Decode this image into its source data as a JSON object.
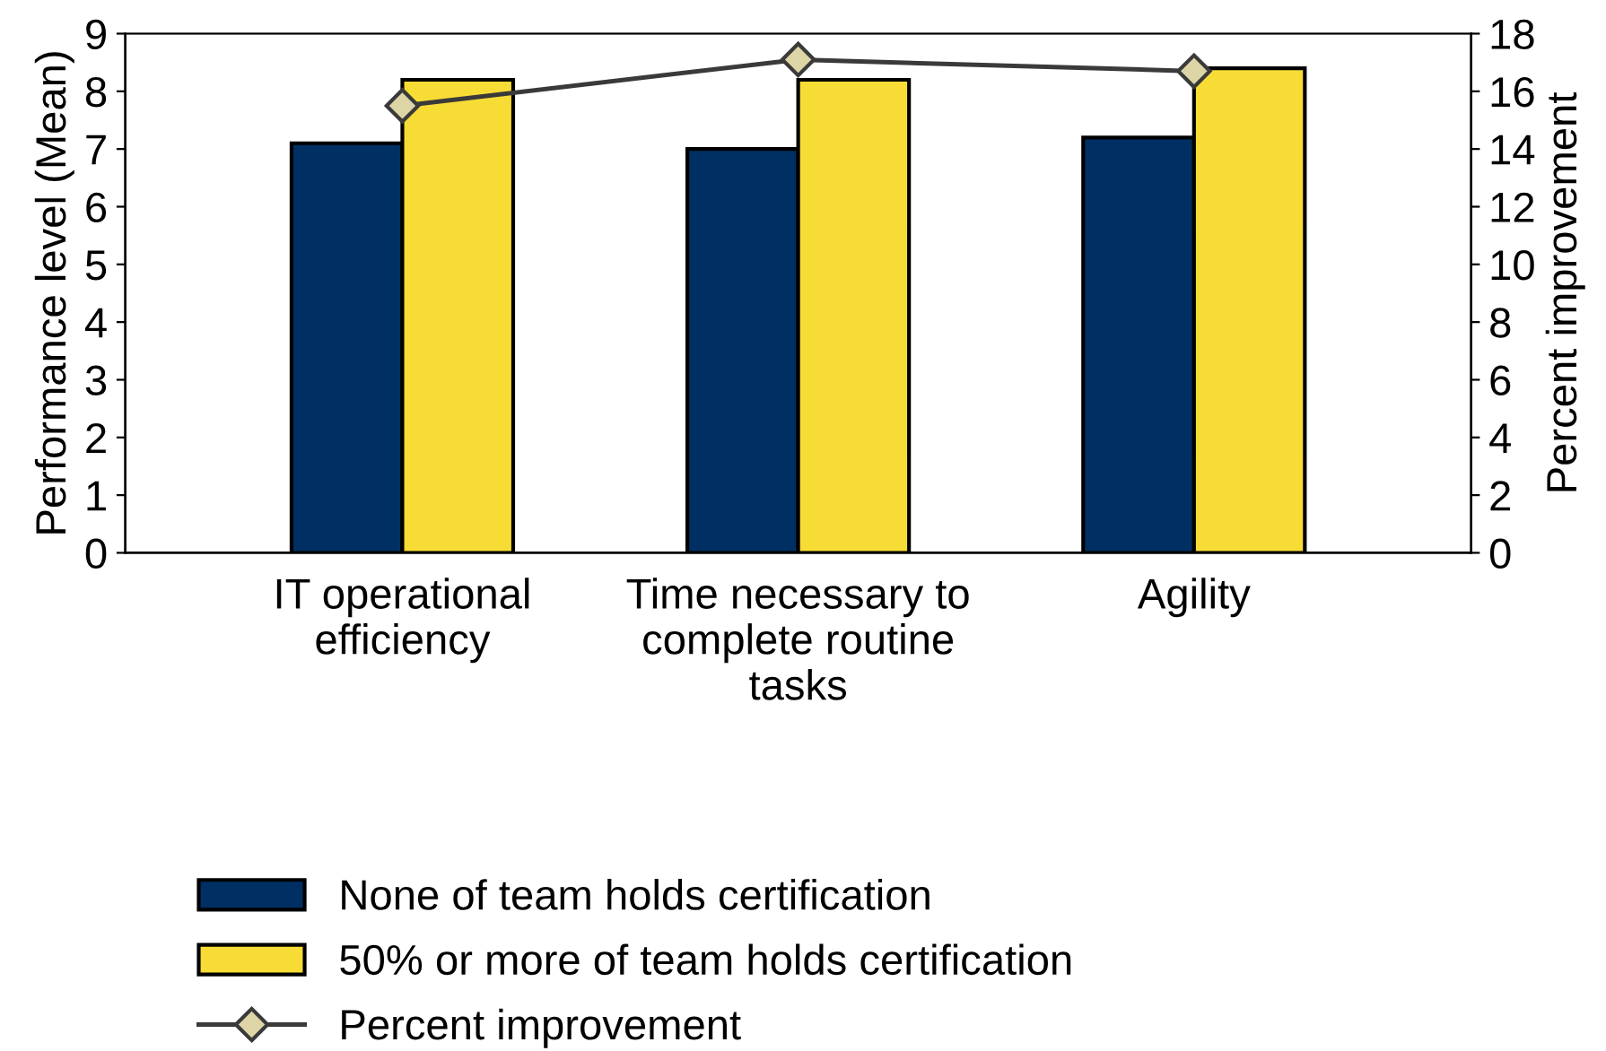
{
  "chart_data": {
    "type": "bar",
    "categories": [
      "IT operational\nefficiency",
      "Time necessary to\ncomplete routine\ntasks",
      "Agility"
    ],
    "ylabel": "Performance level (Mean)",
    "y2label": "Percent improvement",
    "series": [
      {
        "name": "None of team holds certification",
        "color": "#003063",
        "values": [
          7.1,
          7.0,
          7.2
        ]
      },
      {
        "name": "50% or more of team holds certification",
        "color": "#f7dc35",
        "values": [
          8.2,
          8.2,
          8.4
        ]
      },
      {
        "name": "Percent improvement",
        "type": "line",
        "axis": "y2",
        "color": "#3a3a3a",
        "marker": "diamond",
        "values": [
          15.5,
          17.1,
          16.7
        ]
      }
    ],
    "ylim": [
      0,
      9
    ],
    "yticks": [
      0,
      1,
      2,
      3,
      4,
      5,
      6,
      7,
      8,
      9
    ],
    "y2lim": [
      0,
      18
    ],
    "y2ticks": [
      0,
      2,
      4,
      6,
      8,
      10,
      12,
      14,
      16,
      18
    ],
    "grid": false,
    "legend": "bottom"
  }
}
